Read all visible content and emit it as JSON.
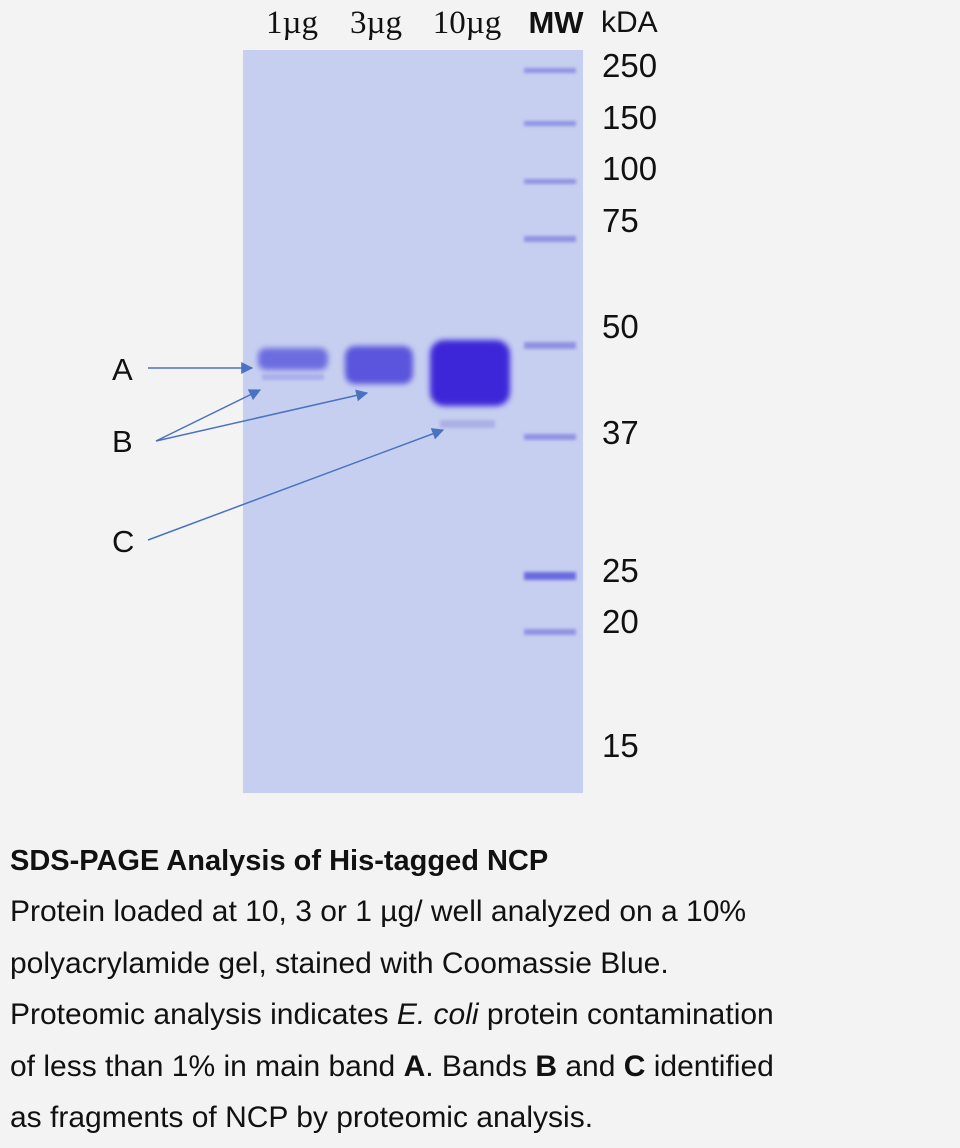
{
  "gel": {
    "lanes": [
      "1µg",
      "3µg",
      "10µg",
      "MW"
    ],
    "unit": "kDA",
    "markers": [
      "250",
      "150",
      "100",
      "75",
      "50",
      "37",
      "25",
      "20",
      "15"
    ],
    "band_labels": [
      "A",
      "B",
      "C"
    ]
  },
  "caption": {
    "title": "SDS-PAGE Analysis of His-tagged NCP",
    "lines": [
      [
        {
          "text": "Protein loaded at 10, 3 or 1 µg/ well analyzed on a 10%"
        }
      ],
      [
        {
          "text": "polyacrylamide gel, stained with Coomassie Blue."
        }
      ],
      [
        {
          "text": "Proteomic analysis indicates "
        },
        {
          "text": "E. coli",
          "emphasis": "italic"
        },
        {
          "text": " protein contamination"
        }
      ],
      [
        {
          "text": "of less than 1% in main band "
        },
        {
          "text": "A",
          "emphasis": "bold"
        },
        {
          "text": ". Bands "
        },
        {
          "text": "B",
          "emphasis": "bold"
        },
        {
          "text": " and "
        },
        {
          "text": "C",
          "emphasis": "bold"
        },
        {
          "text": " identified"
        }
      ],
      [
        {
          "text": "as fragments of NCP by proteomic analysis."
        }
      ]
    ]
  }
}
